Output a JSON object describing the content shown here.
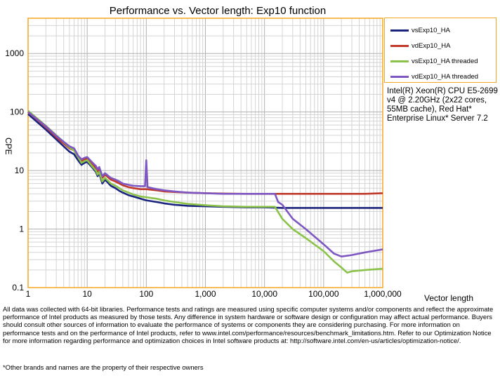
{
  "chart_data": {
    "type": "line",
    "title": "Performance vs. Vector length: Exp10 function",
    "xlabel": "Vector length",
    "ylabel": "CPE",
    "x_scale": "log",
    "y_scale": "log",
    "xlim": [
      1,
      1000000
    ],
    "ylim": [
      0.1,
      4000
    ],
    "x_tick_labels": [
      "1",
      "10",
      "100",
      "1,000",
      "10,000",
      "100,000",
      "1,000,000"
    ],
    "x_tick_values": [
      1,
      10,
      100,
      1000,
      10000,
      100000,
      1000000
    ],
    "y_tick_labels": [
      "0.1",
      "1",
      "10",
      "100",
      "1000"
    ],
    "y_tick_values": [
      0.1,
      1,
      10,
      100,
      1000
    ],
    "grid": true,
    "legend_position": "right",
    "series": [
      {
        "name": "vsExp10_HA",
        "color": "#1a237e",
        "x": [
          1,
          2,
          3,
          5,
          6,
          7,
          8,
          9,
          10,
          12,
          14,
          15,
          16,
          18,
          20,
          25,
          30,
          35,
          40,
          50,
          60,
          80,
          100,
          150,
          200,
          300,
          500,
          1000,
          2000,
          5000,
          10000,
          20000,
          50000,
          100000,
          200000,
          500000,
          1000000
        ],
        "y": [
          92,
          50,
          34,
          21,
          19,
          15,
          12.5,
          13.5,
          14,
          11.5,
          9.5,
          8,
          9,
          6,
          7,
          5.5,
          5,
          4.5,
          4.2,
          3.8,
          3.6,
          3.3,
          3.1,
          2.9,
          2.75,
          2.6,
          2.5,
          2.45,
          2.4,
          2.35,
          2.35,
          2.3,
          2.3,
          2.3,
          2.3,
          2.3,
          2.3
        ]
      },
      {
        "name": "vdExp10_HA",
        "color": "#c0392b",
        "x": [
          1,
          2,
          3,
          5,
          6,
          7,
          8,
          9,
          10,
          12,
          14,
          15,
          16,
          18,
          20,
          25,
          30,
          35,
          40,
          50,
          60,
          80,
          100,
          150,
          200,
          300,
          500,
          1000,
          2000,
          5000,
          10000,
          20000,
          50000,
          100000,
          200000,
          500000,
          1000000
        ],
        "y": [
          100,
          55,
          37,
          24,
          22,
          17,
          14.5,
          15.5,
          16,
          13,
          11,
          9.5,
          10.5,
          7.5,
          8.5,
          7,
          6.5,
          6,
          5.6,
          5.2,
          5,
          4.8,
          4.8,
          4.6,
          4.4,
          4.3,
          4.2,
          4.1,
          4.05,
          4.0,
          4.0,
          4.0,
          4.0,
          4.0,
          4.0,
          4.0,
          4.1
        ]
      },
      {
        "name": "vsExp10_HA threaded",
        "color": "#8bc34a",
        "x": [
          1,
          2,
          3,
          5,
          6,
          7,
          8,
          9,
          10,
          12,
          14,
          15,
          16,
          18,
          20,
          25,
          30,
          35,
          40,
          50,
          60,
          80,
          100,
          150,
          200,
          300,
          500,
          1000,
          2000,
          5000,
          10000,
          15000,
          20000,
          30000,
          50000,
          100000,
          150000,
          200000,
          250000,
          300000,
          500000,
          1000000
        ],
        "y": [
          105,
          58,
          40,
          25,
          22,
          17,
          13.5,
          14.5,
          15,
          12,
          10,
          8.5,
          9.5,
          6.5,
          7.5,
          6,
          5.5,
          5,
          4.6,
          4.2,
          3.9,
          3.6,
          3.5,
          3.3,
          3.1,
          2.9,
          2.7,
          2.55,
          2.45,
          2.4,
          2.4,
          2.4,
          1.5,
          1.0,
          0.7,
          0.42,
          0.28,
          0.22,
          0.18,
          0.19,
          0.2,
          0.21
        ]
      },
      {
        "name": "vdExp10_HA threaded",
        "color": "#7e57c2",
        "x": [
          1,
          2,
          3,
          5,
          6,
          7,
          8,
          9,
          10,
          12,
          14,
          15,
          16,
          18,
          20,
          25,
          30,
          35,
          40,
          50,
          60,
          80,
          95,
          100,
          105,
          150,
          200,
          300,
          500,
          1000,
          2000,
          5000,
          10000,
          15000,
          17000,
          20000,
          30000,
          50000,
          100000,
          150000,
          200000,
          300000,
          500000,
          1000000
        ],
        "y": [
          100,
          57,
          39,
          26,
          24,
          18,
          15.5,
          16.5,
          17,
          14,
          12,
          10.5,
          11.5,
          8,
          9,
          7.5,
          7,
          6.5,
          6,
          5.7,
          5.5,
          5.4,
          5.4,
          15,
          5.2,
          4.8,
          4.6,
          4.4,
          4.2,
          4.1,
          4.0,
          4.0,
          4.0,
          4.0,
          2.9,
          2.6,
          1.5,
          1.0,
          0.55,
          0.38,
          0.34,
          0.36,
          0.4,
          0.45
        ]
      }
    ]
  },
  "cpu_note": "Intel(R) Xeon(R) CPU E5-2699 v4 @ 2.20GHz (2x22 cores, 55MB cache), Red Hat* Enterprise Linux* Server 7.2",
  "disclaimer": "All data was collected with 64-bit libraries. Performance tests and ratings are measured using specific computer systems and/or components and reflect the approximate performance of Intel products as measured by those tests. Any difference in system hardware or software design or configuration may affect actual performance. Buyers should consult other sources of information to evaluate the performance of systems or components they are considering purchasing. For more information on performance tests and on the performance of Intel products, refer to www.intel.com/performance/resources/benchmark_limitations.htm. Refer to our Optimization Notice for more information regarding performance and optimization choices in Intel software products at: http://software.intel.com/en-us/articles/optimization-notice/.",
  "footnote": "*Other brands and names are the property of their respective owners"
}
